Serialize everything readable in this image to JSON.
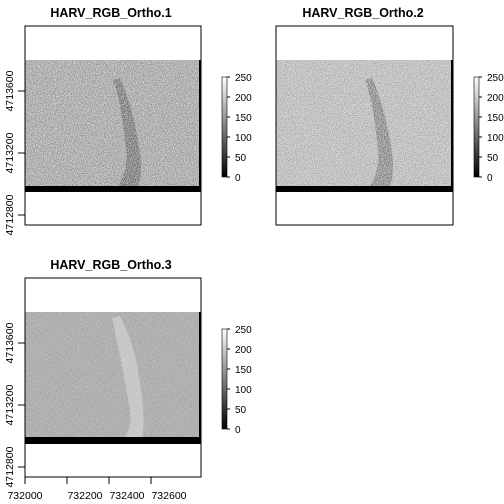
{
  "chart_data": [
    {
      "type": "heatmap",
      "title": "HARV_RGB_Ortho.1",
      "band_shade": "#8a8a8a",
      "dark_channel": true,
      "yticks": [
        4712800,
        4713200,
        4713600
      ],
      "xticks": [],
      "legend": {
        "min": 0,
        "max": 250,
        "ticks": [
          0,
          50,
          100,
          150,
          200,
          250
        ]
      }
    },
    {
      "type": "heatmap",
      "title": "HARV_RGB_Ortho.2",
      "band_shade": "#a3a3a3",
      "dark_channel": true,
      "yticks": [],
      "xticks": [],
      "legend": {
        "min": 0,
        "max": 250,
        "ticks": [
          0,
          50,
          100,
          150,
          200,
          250
        ]
      }
    },
    {
      "type": "heatmap",
      "title": "HARV_RGB_Ortho.3",
      "band_shade": "#9a9a9a",
      "dark_channel": false,
      "yticks": [
        4712800,
        4713200,
        4713600
      ],
      "xticks": [
        732000,
        732200,
        732400,
        732600
      ],
      "legend": {
        "min": 0,
        "max": 250,
        "ticks": [
          0,
          50,
          100,
          150,
          200,
          250
        ]
      }
    }
  ]
}
